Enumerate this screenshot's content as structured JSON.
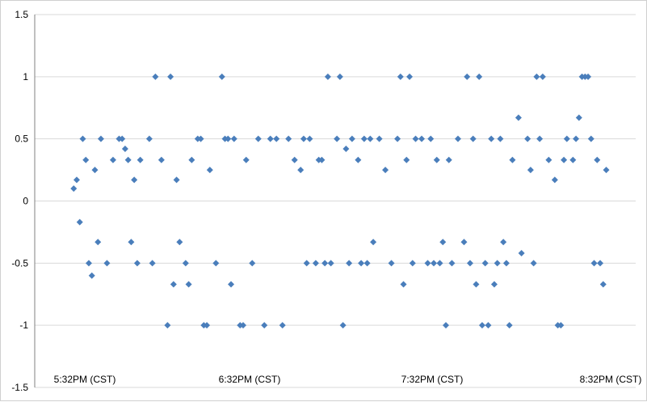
{
  "chart_data": {
    "type": "scatter",
    "title": "",
    "xlabel": "",
    "ylabel": "",
    "ylim": [
      -1.5,
      1.5
    ],
    "y_ticks": [
      "1.5",
      "1",
      "0.5",
      "0",
      "-0.5",
      "-1",
      "-1.5"
    ],
    "x_tick_labels": [
      "5:32PM (CST)",
      "6:32PM (CST)",
      "7:32PM (CST)",
      "8:32PM (CST)"
    ],
    "x_range_minutes": [
      0,
      185
    ],
    "grid": "horizontal",
    "legend": "none",
    "marker": "diamond",
    "colors": {
      "marker": "#4a7ebb",
      "grid": "#d9d9d9",
      "axis": "#808080"
    },
    "series": [
      {
        "points": [
          [
            3,
            0.1
          ],
          [
            4,
            0.17
          ],
          [
            5,
            -0.17
          ],
          [
            6,
            0.5
          ],
          [
            7,
            0.33
          ],
          [
            8,
            -0.5
          ],
          [
            9,
            -0.6
          ],
          [
            10,
            0.25
          ],
          [
            11,
            -0.33
          ],
          [
            12,
            0.5
          ],
          [
            14,
            -0.5
          ],
          [
            16,
            0.33
          ],
          [
            18,
            0.5
          ],
          [
            19,
            0.5
          ],
          [
            20,
            0.42
          ],
          [
            21,
            0.33
          ],
          [
            22,
            -0.33
          ],
          [
            23,
            0.17
          ],
          [
            24,
            -0.5
          ],
          [
            25,
            0.33
          ],
          [
            28,
            0.5
          ],
          [
            29,
            -0.5
          ],
          [
            30,
            1
          ],
          [
            32,
            0.33
          ],
          [
            34,
            -1
          ],
          [
            35,
            1
          ],
          [
            36,
            -0.67
          ],
          [
            37,
            0.17
          ],
          [
            38,
            -0.33
          ],
          [
            40,
            -0.5
          ],
          [
            41,
            -0.67
          ],
          [
            42,
            0.33
          ],
          [
            44,
            0.5
          ],
          [
            45,
            0.5
          ],
          [
            46,
            -1
          ],
          [
            47,
            -1
          ],
          [
            48,
            0.25
          ],
          [
            50,
            -0.5
          ],
          [
            52,
            1
          ],
          [
            53,
            0.5
          ],
          [
            54,
            0.5
          ],
          [
            55,
            -0.67
          ],
          [
            56,
            0.5
          ],
          [
            58,
            -1
          ],
          [
            59,
            -1
          ],
          [
            60,
            0.33
          ],
          [
            62,
            -0.5
          ],
          [
            64,
            0.5
          ],
          [
            66,
            -1
          ],
          [
            68,
            0.5
          ],
          [
            70,
            0.5
          ],
          [
            72,
            -1
          ],
          [
            74,
            0.5
          ],
          [
            76,
            0.33
          ],
          [
            78,
            0.25
          ],
          [
            79,
            0.5
          ],
          [
            80,
            -0.5
          ],
          [
            81,
            0.5
          ],
          [
            83,
            -0.5
          ],
          [
            84,
            0.33
          ],
          [
            85,
            0.33
          ],
          [
            86,
            -0.5
          ],
          [
            87,
            1
          ],
          [
            88,
            -0.5
          ],
          [
            90,
            0.5
          ],
          [
            91,
            1
          ],
          [
            92,
            -1
          ],
          [
            93,
            0.42
          ],
          [
            94,
            -0.5
          ],
          [
            95,
            0.5
          ],
          [
            97,
            0.33
          ],
          [
            98,
            -0.5
          ],
          [
            99,
            0.5
          ],
          [
            100,
            -0.5
          ],
          [
            101,
            0.5
          ],
          [
            102,
            -0.33
          ],
          [
            104,
            0.5
          ],
          [
            106,
            0.25
          ],
          [
            108,
            -0.5
          ],
          [
            110,
            0.5
          ],
          [
            111,
            1
          ],
          [
            112,
            -0.67
          ],
          [
            113,
            0.33
          ],
          [
            114,
            1
          ],
          [
            115,
            -0.5
          ],
          [
            116,
            0.5
          ],
          [
            118,
            0.5
          ],
          [
            120,
            -0.5
          ],
          [
            121,
            0.5
          ],
          [
            122,
            -0.5
          ],
          [
            123,
            0.33
          ],
          [
            124,
            -0.5
          ],
          [
            125,
            -0.33
          ],
          [
            126,
            -1
          ],
          [
            127,
            0.33
          ],
          [
            128,
            -0.5
          ],
          [
            130,
            0.5
          ],
          [
            132,
            -0.33
          ],
          [
            133,
            1
          ],
          [
            134,
            -0.5
          ],
          [
            135,
            0.5
          ],
          [
            136,
            -0.67
          ],
          [
            137,
            1
          ],
          [
            138,
            -1
          ],
          [
            139,
            -0.5
          ],
          [
            140,
            -1
          ],
          [
            141,
            0.5
          ],
          [
            142,
            -0.67
          ],
          [
            143,
            -0.5
          ],
          [
            144,
            0.5
          ],
          [
            145,
            -0.33
          ],
          [
            146,
            -0.5
          ],
          [
            147,
            -1
          ],
          [
            148,
            0.33
          ],
          [
            150,
            0.67
          ],
          [
            151,
            -0.42
          ],
          [
            153,
            0.5
          ],
          [
            154,
            0.25
          ],
          [
            155,
            -0.5
          ],
          [
            156,
            1
          ],
          [
            157,
            0.5
          ],
          [
            158,
            1
          ],
          [
            160,
            0.33
          ],
          [
            162,
            0.17
          ],
          [
            163,
            -1
          ],
          [
            164,
            -1
          ],
          [
            165,
            0.33
          ],
          [
            166,
            0.5
          ],
          [
            168,
            0.33
          ],
          [
            169,
            0.5
          ],
          [
            170,
            0.67
          ],
          [
            171,
            1
          ],
          [
            172,
            1
          ],
          [
            173,
            1
          ],
          [
            174,
            0.5
          ],
          [
            175,
            -0.5
          ],
          [
            176,
            0.33
          ],
          [
            177,
            -0.5
          ],
          [
            178,
            -0.67
          ],
          [
            179,
            0.25
          ]
        ]
      }
    ]
  }
}
